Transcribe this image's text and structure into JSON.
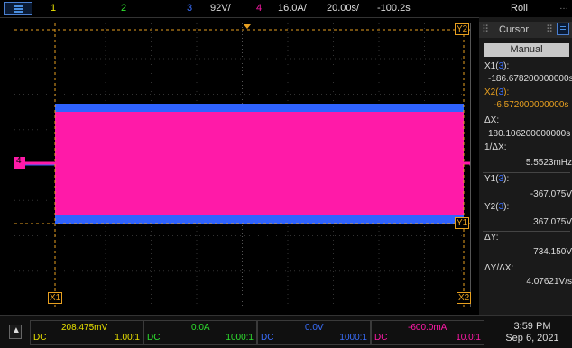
{
  "topbar": {
    "ch1_label": "1",
    "ch2_label": "2",
    "ch3_label": "3",
    "ch3_scale": "92V/",
    "ch4_label": "4",
    "ch4_scale": "16.0A/",
    "timebase": "20.00s/",
    "delay": "-100.2s",
    "mode": "Roll"
  },
  "cursor_panel": {
    "title": "Cursor",
    "mode": "Manual",
    "x1_label": "X1(",
    "x1_src": "3",
    "x1_close": "):",
    "x1_value": "-186.678200000000s",
    "x2_label": "X2(",
    "x2_src": "3",
    "x2_close": "):",
    "x2_value": "-6.572000000000s",
    "dx_label": "ΔX:",
    "dx_value": "180.106200000000s",
    "inv_dx_label": "1/ΔX:",
    "inv_dx_value": "5.5523mHz",
    "y1_label": "Y1(",
    "y1_src": "3",
    "y1_close": "):",
    "y1_value": "-367.075V",
    "y2_label": "Y2(",
    "y2_src": "3",
    "y2_close": "):",
    "y2_value": "367.075V",
    "dy_label": "ΔY:",
    "dy_value": "734.150V",
    "dydx_label": "ΔY/ΔX:",
    "dydx_value": "4.07621V/s"
  },
  "plot": {
    "cursor_x1_label": "X1",
    "cursor_x2_label": "X2",
    "cursor_y2_label": "Y2",
    "cursor_y1_label": "Y1",
    "ch4_marker": "4"
  },
  "channels": [
    {
      "value": "208.475mV",
      "coupling": "DC",
      "probe": "1.00:1",
      "color": "#e8e000"
    },
    {
      "value": "0.0A",
      "coupling": "DC",
      "probe": "1000:1",
      "color": "#2ee02e"
    },
    {
      "value": "0.0V",
      "coupling": "DC",
      "probe": "1000:1",
      "color": "#3a6fff"
    },
    {
      "value": "-600.0mA",
      "coupling": "DC",
      "probe": "10.0:1",
      "color": "#ff1aa8"
    }
  ],
  "clock": {
    "time": "3:59 PM",
    "date": "Sep 6, 2021"
  },
  "colors": {
    "ch1": "#e8e000",
    "ch2": "#2ee02e",
    "ch3": "#3a6fff",
    "ch4": "#ff1aa8",
    "cursor": "#e8a020"
  }
}
